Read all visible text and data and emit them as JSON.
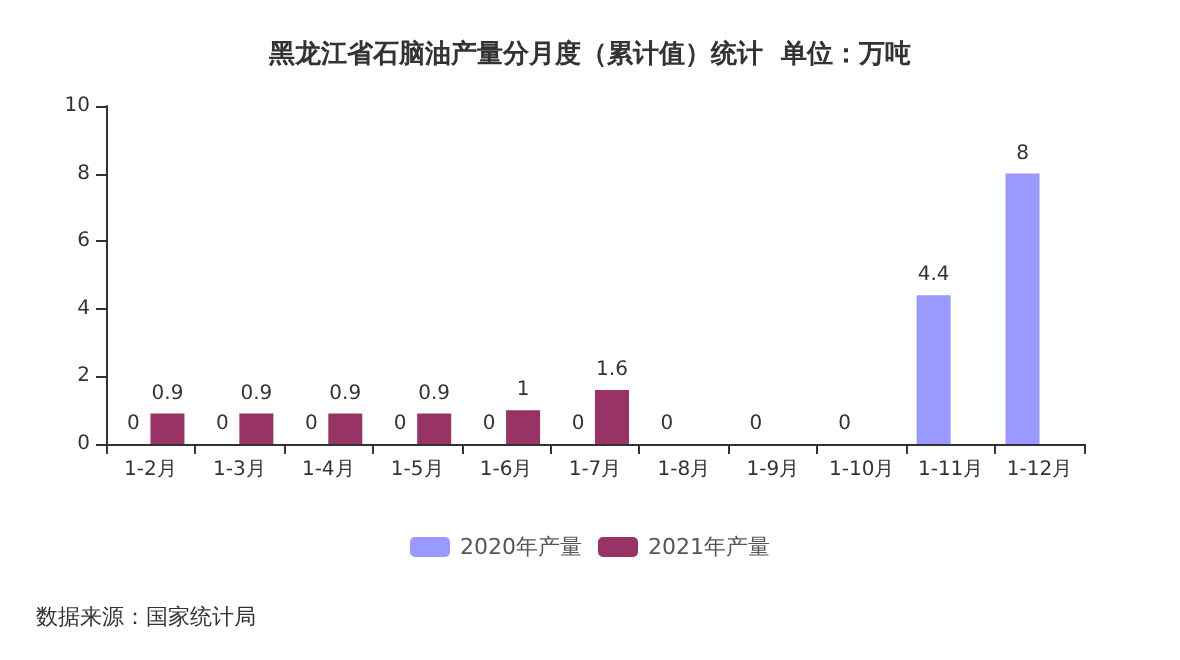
{
  "chart_data": {
    "type": "bar",
    "title": "黑龙江省石脑油产量分月度（累计值）统计  单位：万吨",
    "categories": [
      "1-2月",
      "1-3月",
      "1-4月",
      "1-5月",
      "1-6月",
      "1-7月",
      "1-8月",
      "1-9月",
      "1-10月",
      "1-11月",
      "1-12月"
    ],
    "series": [
      {
        "name": "2020年产量",
        "color": "#9999ff",
        "values": [
          0,
          0,
          0,
          0,
          0,
          0,
          0,
          0,
          0,
          4.4,
          8
        ]
      },
      {
        "name": "2021年产量",
        "color": "#993366",
        "values": [
          0.9,
          0.9,
          0.9,
          0.9,
          1,
          1.6,
          null,
          null,
          null,
          null,
          null
        ]
      }
    ],
    "ylim": [
      0,
      10
    ],
    "yticks": [
      0,
      2,
      4,
      6,
      8,
      10
    ],
    "grid": false,
    "legend": "bottom",
    "data_labels": true,
    "annotations": [
      "数据来源：国家统计局"
    ]
  }
}
